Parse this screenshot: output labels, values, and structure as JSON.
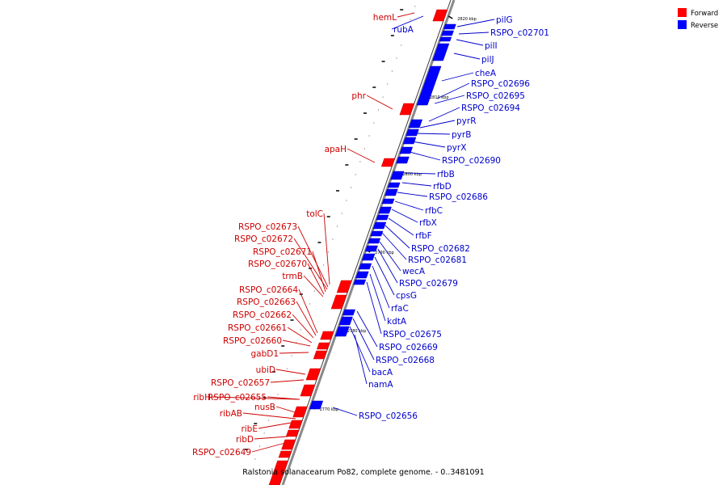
{
  "legend": {
    "forward": {
      "label": "Forward",
      "color": "#ff0000"
    },
    "reverse": {
      "label": "Reverse",
      "color": "#0000ff"
    }
  },
  "caption": "Ralstonia solanacearum Po82, complete genome. - 0..3481091",
  "ticks": [
    "2820 kbp",
    "2810 kbp",
    "2800 kbp",
    "2790 kbp",
    "2780 kbp",
    "2770 kbp"
  ],
  "forward_genes": [
    "hemL",
    "phr",
    "apaH",
    "tolC",
    "RSPO_c02673",
    "RSPO_c02672",
    "RSPO_c02671",
    "RSPO_c02670",
    "trmB",
    "RSPO_c02664",
    "RSPO_c02663",
    "RSPO_c02662",
    "RSPO_c02661",
    "RSPO_c02660",
    "gabD1",
    "ubiD",
    "RSPO_c02657",
    "ribH",
    "RSPO_c02655",
    "nusB",
    "ribAB",
    "ribE",
    "ribD",
    "RSPO_c02649"
  ],
  "reverse_genes": [
    "rubA",
    "pilG",
    "RSPO_c02701",
    "pilI",
    "pilJ",
    "cheA",
    "RSPO_c02696",
    "RSPO_c02695",
    "RSPO_c02694",
    "pyrR",
    "pyrB",
    "pyrX",
    "RSPO_c02690",
    "rfbB",
    "rfbD",
    "RSPO_c02686",
    "rfbC",
    "rfbX",
    "rfbF",
    "RSPO_c02682",
    "RSPO_c02681",
    "wecA",
    "RSPO_c02679",
    "cpsG",
    "rfaC",
    "kdtA",
    "RSPO_c02675",
    "RSPO_c02669",
    "RSPO_c02668",
    "bacA",
    "namA",
    "RSPO_c02656"
  ]
}
